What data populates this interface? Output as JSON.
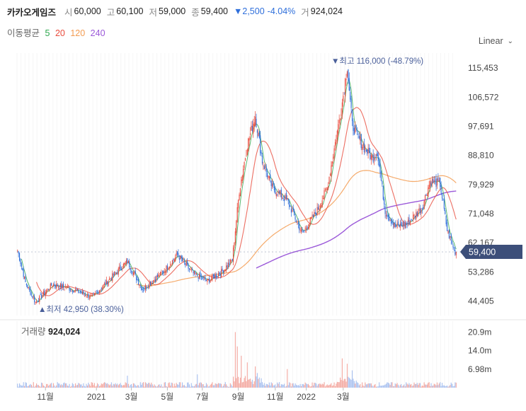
{
  "header": {
    "name": "카카오게임즈",
    "open_label": "시",
    "open": "60,000",
    "high_label": "고",
    "high": "60,100",
    "low_label": "저",
    "low": "59,000",
    "close_label": "종",
    "close": "59,400",
    "change": "▼2,500",
    "change_pct": "-4.04%",
    "volume_label": "거",
    "volume": "924,024"
  },
  "ma_legend": {
    "label": "이동평균",
    "items": [
      {
        "text": "5",
        "color": "#2fa84f"
      },
      {
        "text": "20",
        "color": "#e94b3c"
      },
      {
        "text": "120",
        "color": "#f39c52"
      },
      {
        "text": "240",
        "color": "#9b59d9"
      }
    ]
  },
  "scale_selector": {
    "label": "Linear"
  },
  "volume_panel": {
    "label": "거래량",
    "value": "924,024"
  },
  "colors": {
    "up": "#e94b3c",
    "down": "#2f6fdb",
    "ma5": "#2fa84f",
    "ma20": "#e94b3c",
    "ma120": "#f39c52",
    "ma240": "#9b59d9",
    "price_tag": "#3d4f7a",
    "annotation": "#4a5f9a"
  },
  "chart_data": {
    "type": "candlestick",
    "price_axis": {
      "ticks": [
        "115,453",
        "106,572",
        "97,691",
        "88,810",
        "79,929",
        "71,048",
        "62,167",
        "53,286",
        "44,405"
      ],
      "range": [
        40000,
        120000
      ]
    },
    "volume_axis": {
      "ticks": [
        "20.9m",
        "14.0m",
        "6.98m"
      ]
    },
    "x_ticks": [
      "11월",
      "2021",
      "3월",
      "5월",
      "7월",
      "9월",
      "11월",
      "2022",
      "3월"
    ],
    "current_price": "59,400",
    "max_annotation": "▼최고 116,000 (-48.79%)",
    "min_annotation": "▲최저 42,950 (38.30%)",
    "close_keypoints": [
      [
        0,
        60000
      ],
      [
        8,
        50000
      ],
      [
        18,
        44000
      ],
      [
        35,
        49500
      ],
      [
        55,
        48000
      ],
      [
        75,
        45500
      ],
      [
        95,
        52000
      ],
      [
        110,
        56500
      ],
      [
        125,
        48000
      ],
      [
        145,
        53000
      ],
      [
        160,
        58500
      ],
      [
        175,
        53000
      ],
      [
        190,
        50500
      ],
      [
        205,
        53500
      ],
      [
        215,
        57000
      ],
      [
        222,
        78000
      ],
      [
        230,
        92000
      ],
      [
        238,
        101000
      ],
      [
        245,
        87000
      ],
      [
        255,
        79000
      ],
      [
        270,
        75000
      ],
      [
        285,
        65000
      ],
      [
        300,
        72000
      ],
      [
        310,
        79000
      ],
      [
        320,
        96000
      ],
      [
        325,
        105000
      ],
      [
        330,
        116000
      ],
      [
        335,
        98000
      ],
      [
        345,
        92000
      ],
      [
        355,
        88000
      ],
      [
        360,
        90000
      ],
      [
        368,
        72000
      ],
      [
        378,
        67000
      ],
      [
        390,
        68000
      ],
      [
        405,
        73000
      ],
      [
        413,
        81000
      ],
      [
        423,
        80000
      ],
      [
        430,
        66000
      ],
      [
        438,
        59400
      ]
    ],
    "volume_spikes": [
      [
        218,
        20.9
      ],
      [
        220,
        15.5
      ],
      [
        224,
        12.0
      ],
      [
        230,
        9.5
      ],
      [
        238,
        8.0
      ],
      [
        325,
        11.0
      ],
      [
        330,
        9.0
      ],
      [
        270,
        7.0
      ],
      [
        335,
        6.5
      ],
      [
        240,
        5.5
      ],
      [
        110,
        4.5
      ],
      [
        180,
        5.0
      ]
    ]
  }
}
